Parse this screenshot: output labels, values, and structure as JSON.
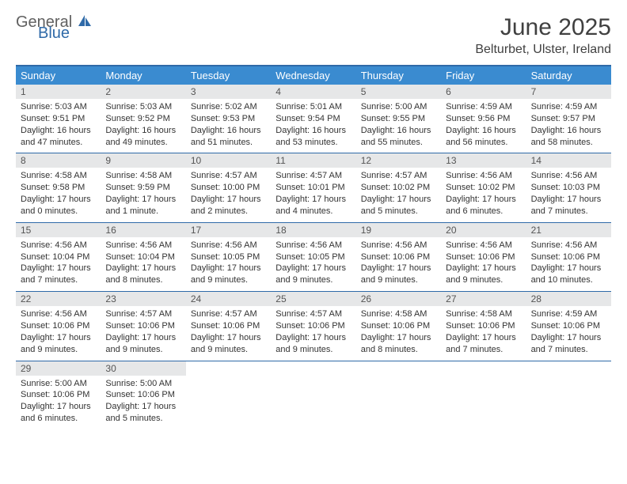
{
  "brand": {
    "general": "General",
    "blue": "Blue"
  },
  "title": "June 2025",
  "location": "Belturbet, Ulster, Ireland",
  "colors": {
    "header_bg": "#3a8bd0",
    "border": "#2f6aa8",
    "daynum_bg": "#e6e7e8",
    "text": "#333333"
  },
  "day_labels": [
    "Sunday",
    "Monday",
    "Tuesday",
    "Wednesday",
    "Thursday",
    "Friday",
    "Saturday"
  ],
  "weeks": [
    [
      {
        "n": "1",
        "sr": "Sunrise: 5:03 AM",
        "ss": "Sunset: 9:51 PM",
        "d1": "Daylight: 16 hours",
        "d2": "and 47 minutes."
      },
      {
        "n": "2",
        "sr": "Sunrise: 5:03 AM",
        "ss": "Sunset: 9:52 PM",
        "d1": "Daylight: 16 hours",
        "d2": "and 49 minutes."
      },
      {
        "n": "3",
        "sr": "Sunrise: 5:02 AM",
        "ss": "Sunset: 9:53 PM",
        "d1": "Daylight: 16 hours",
        "d2": "and 51 minutes."
      },
      {
        "n": "4",
        "sr": "Sunrise: 5:01 AM",
        "ss": "Sunset: 9:54 PM",
        "d1": "Daylight: 16 hours",
        "d2": "and 53 minutes."
      },
      {
        "n": "5",
        "sr": "Sunrise: 5:00 AM",
        "ss": "Sunset: 9:55 PM",
        "d1": "Daylight: 16 hours",
        "d2": "and 55 minutes."
      },
      {
        "n": "6",
        "sr": "Sunrise: 4:59 AM",
        "ss": "Sunset: 9:56 PM",
        "d1": "Daylight: 16 hours",
        "d2": "and 56 minutes."
      },
      {
        "n": "7",
        "sr": "Sunrise: 4:59 AM",
        "ss": "Sunset: 9:57 PM",
        "d1": "Daylight: 16 hours",
        "d2": "and 58 minutes."
      }
    ],
    [
      {
        "n": "8",
        "sr": "Sunrise: 4:58 AM",
        "ss": "Sunset: 9:58 PM",
        "d1": "Daylight: 17 hours",
        "d2": "and 0 minutes."
      },
      {
        "n": "9",
        "sr": "Sunrise: 4:58 AM",
        "ss": "Sunset: 9:59 PM",
        "d1": "Daylight: 17 hours",
        "d2": "and 1 minute."
      },
      {
        "n": "10",
        "sr": "Sunrise: 4:57 AM",
        "ss": "Sunset: 10:00 PM",
        "d1": "Daylight: 17 hours",
        "d2": "and 2 minutes."
      },
      {
        "n": "11",
        "sr": "Sunrise: 4:57 AM",
        "ss": "Sunset: 10:01 PM",
        "d1": "Daylight: 17 hours",
        "d2": "and 4 minutes."
      },
      {
        "n": "12",
        "sr": "Sunrise: 4:57 AM",
        "ss": "Sunset: 10:02 PM",
        "d1": "Daylight: 17 hours",
        "d2": "and 5 minutes."
      },
      {
        "n": "13",
        "sr": "Sunrise: 4:56 AM",
        "ss": "Sunset: 10:02 PM",
        "d1": "Daylight: 17 hours",
        "d2": "and 6 minutes."
      },
      {
        "n": "14",
        "sr": "Sunrise: 4:56 AM",
        "ss": "Sunset: 10:03 PM",
        "d1": "Daylight: 17 hours",
        "d2": "and 7 minutes."
      }
    ],
    [
      {
        "n": "15",
        "sr": "Sunrise: 4:56 AM",
        "ss": "Sunset: 10:04 PM",
        "d1": "Daylight: 17 hours",
        "d2": "and 7 minutes."
      },
      {
        "n": "16",
        "sr": "Sunrise: 4:56 AM",
        "ss": "Sunset: 10:04 PM",
        "d1": "Daylight: 17 hours",
        "d2": "and 8 minutes."
      },
      {
        "n": "17",
        "sr": "Sunrise: 4:56 AM",
        "ss": "Sunset: 10:05 PM",
        "d1": "Daylight: 17 hours",
        "d2": "and 9 minutes."
      },
      {
        "n": "18",
        "sr": "Sunrise: 4:56 AM",
        "ss": "Sunset: 10:05 PM",
        "d1": "Daylight: 17 hours",
        "d2": "and 9 minutes."
      },
      {
        "n": "19",
        "sr": "Sunrise: 4:56 AM",
        "ss": "Sunset: 10:06 PM",
        "d1": "Daylight: 17 hours",
        "d2": "and 9 minutes."
      },
      {
        "n": "20",
        "sr": "Sunrise: 4:56 AM",
        "ss": "Sunset: 10:06 PM",
        "d1": "Daylight: 17 hours",
        "d2": "and 9 minutes."
      },
      {
        "n": "21",
        "sr": "Sunrise: 4:56 AM",
        "ss": "Sunset: 10:06 PM",
        "d1": "Daylight: 17 hours",
        "d2": "and 10 minutes."
      }
    ],
    [
      {
        "n": "22",
        "sr": "Sunrise: 4:56 AM",
        "ss": "Sunset: 10:06 PM",
        "d1": "Daylight: 17 hours",
        "d2": "and 9 minutes."
      },
      {
        "n": "23",
        "sr": "Sunrise: 4:57 AM",
        "ss": "Sunset: 10:06 PM",
        "d1": "Daylight: 17 hours",
        "d2": "and 9 minutes."
      },
      {
        "n": "24",
        "sr": "Sunrise: 4:57 AM",
        "ss": "Sunset: 10:06 PM",
        "d1": "Daylight: 17 hours",
        "d2": "and 9 minutes."
      },
      {
        "n": "25",
        "sr": "Sunrise: 4:57 AM",
        "ss": "Sunset: 10:06 PM",
        "d1": "Daylight: 17 hours",
        "d2": "and 9 minutes."
      },
      {
        "n": "26",
        "sr": "Sunrise: 4:58 AM",
        "ss": "Sunset: 10:06 PM",
        "d1": "Daylight: 17 hours",
        "d2": "and 8 minutes."
      },
      {
        "n": "27",
        "sr": "Sunrise: 4:58 AM",
        "ss": "Sunset: 10:06 PM",
        "d1": "Daylight: 17 hours",
        "d2": "and 7 minutes."
      },
      {
        "n": "28",
        "sr": "Sunrise: 4:59 AM",
        "ss": "Sunset: 10:06 PM",
        "d1": "Daylight: 17 hours",
        "d2": "and 7 minutes."
      }
    ],
    [
      {
        "n": "29",
        "sr": "Sunrise: 5:00 AM",
        "ss": "Sunset: 10:06 PM",
        "d1": "Daylight: 17 hours",
        "d2": "and 6 minutes."
      },
      {
        "n": "30",
        "sr": "Sunrise: 5:00 AM",
        "ss": "Sunset: 10:06 PM",
        "d1": "Daylight: 17 hours",
        "d2": "and 5 minutes."
      },
      {
        "empty": true
      },
      {
        "empty": true
      },
      {
        "empty": true
      },
      {
        "empty": true
      },
      {
        "empty": true
      }
    ]
  ]
}
